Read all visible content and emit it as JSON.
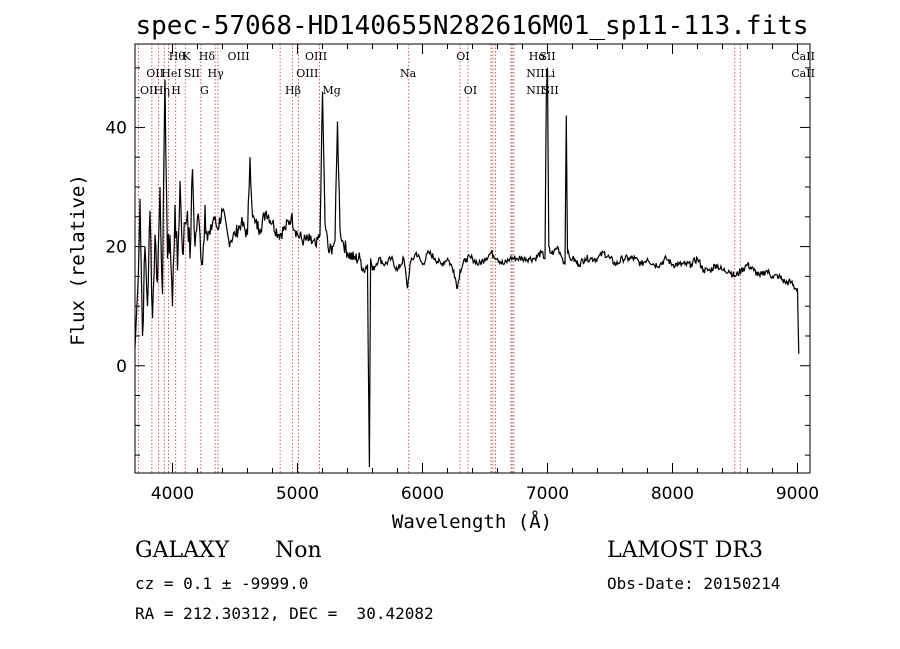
{
  "chart_data": {
    "type": "line",
    "title": "spec-57068-HD140655N282616M01_sp11-113.fits",
    "xlabel": "Wavelength (Å)",
    "ylabel": "Flux (relative)",
    "xlim": [
      3700,
      9100
    ],
    "ylim": [
      -18,
      54
    ],
    "x_ticks": [
      4000,
      5000,
      6000,
      7000,
      8000,
      9000
    ],
    "y_ticks": [
      0,
      20,
      40
    ],
    "grid": false,
    "series": [
      {
        "name": "flux",
        "x": [
          3700,
          3720,
          3740,
          3760,
          3780,
          3800,
          3820,
          3840,
          3860,
          3880,
          3900,
          3920,
          3940,
          3960,
          3980,
          4000,
          4020,
          4040,
          4060,
          4080,
          4100,
          4120,
          4140,
          4160,
          4180,
          4200,
          4220,
          4240,
          4260,
          4280,
          4300,
          4330,
          4360,
          4400,
          4450,
          4500,
          4550,
          4600,
          4620,
          4640,
          4660,
          4700,
          4750,
          4800,
          4850,
          4900,
          4950,
          5000,
          5050,
          5100,
          5150,
          5180,
          5200,
          5220,
          5250,
          5280,
          5300,
          5320,
          5340,
          5360,
          5400,
          5450,
          5500,
          5530,
          5560,
          5575,
          5585,
          5600,
          5650,
          5700,
          5750,
          5800,
          5850,
          5880,
          5900,
          5950,
          6000,
          6050,
          6100,
          6150,
          6200,
          6250,
          6280,
          6300,
          6350,
          6400,
          6450,
          6500,
          6550,
          6600,
          6650,
          6700,
          6750,
          6800,
          6850,
          6900,
          6950,
          6980,
          6990,
          7000,
          7010,
          7020,
          7050,
          7080,
          7100,
          7120,
          7140,
          7150,
          7160,
          7180,
          7200,
          7250,
          7300,
          7350,
          7400,
          7450,
          7500,
          7550,
          7600,
          7650,
          7700,
          7750,
          7800,
          7850,
          7900,
          7950,
          8000,
          8050,
          8100,
          8150,
          8200,
          8250,
          8300,
          8350,
          8400,
          8450,
          8500,
          8550,
          8600,
          8650,
          8700,
          8750,
          8800,
          8850,
          8900,
          8950,
          8980,
          9000,
          9010
        ],
        "values": [
          3,
          12,
          28,
          5,
          20,
          10,
          26,
          8,
          22,
          14,
          30,
          12,
          48,
          18,
          22,
          10,
          27,
          16,
          31,
          19,
          24,
          26,
          18,
          33,
          20,
          25,
          22,
          17,
          27,
          21,
          22,
          25,
          23,
          26,
          21,
          22,
          24,
          22,
          35,
          25,
          24,
          23,
          26,
          24,
          22,
          23,
          25,
          22,
          21,
          21,
          20,
          22,
          46,
          24,
          19,
          20,
          21,
          41,
          23,
          21,
          19,
          18,
          18,
          16,
          17,
          -17,
          18,
          16,
          18,
          17,
          18,
          16,
          18,
          13,
          17,
          19,
          17,
          19,
          18,
          17,
          18,
          16,
          13,
          16,
          18,
          18,
          17,
          18,
          19,
          18,
          17,
          18,
          18,
          18,
          18,
          18,
          19,
          18,
          45,
          50,
          20,
          19,
          19,
          20,
          19,
          18,
          17,
          42,
          19,
          18,
          18,
          17,
          18,
          18,
          18,
          19,
          18,
          17,
          18,
          18,
          18,
          17,
          18,
          17,
          17,
          18,
          17,
          17,
          17,
          17,
          18,
          16,
          16,
          17,
          16,
          16,
          15,
          16,
          17,
          16,
          15,
          16,
          15,
          15,
          14,
          14,
          13,
          13,
          2
        ]
      }
    ],
    "lines_top": [
      {
        "label": "Hθ",
        "x": 3970
      },
      {
        "label": "K",
        "x": 4080
      },
      {
        "label": "Hδ",
        "x": 4210
      },
      {
        "label": "OIII",
        "x": 4440
      },
      {
        "label": "OIII",
        "x": 5060
      },
      {
        "label": "OI",
        "x": 6270
      },
      {
        "label": "Hα",
        "x": 6850
      },
      {
        "label": "SII",
        "x": 6935
      },
      {
        "label": "CaII",
        "x": 8950
      }
    ],
    "lines_mid": [
      {
        "label": "OII",
        "x": 3790
      },
      {
        "label": "HeI",
        "x": 3910
      },
      {
        "label": "SII",
        "x": 4090
      },
      {
        "label": "Hγ",
        "x": 4280
      },
      {
        "label": "OIII",
        "x": 4990
      },
      {
        "label": "Na",
        "x": 5820
      },
      {
        "label": "NII",
        "x": 6830
      },
      {
        "label": "Li",
        "x": 6975
      },
      {
        "label": "CaII",
        "x": 8950
      }
    ],
    "lines_bot": [
      {
        "label": "OII",
        "x": 3740
      },
      {
        "label": "Hη",
        "x": 3850
      },
      {
        "label": "H",
        "x": 3990
      },
      {
        "label": "G",
        "x": 4220
      },
      {
        "label": "Hβ",
        "x": 4900
      },
      {
        "label": "Mg",
        "x": 5200
      },
      {
        "label": "OI",
        "x": 6330
      },
      {
        "label": "NII",
        "x": 6830
      },
      {
        "label": "SII",
        "x": 6960
      }
    ],
    "marker_lines": [
      3727,
      3835,
      3889,
      3934,
      3968,
      4026,
      4102,
      4227,
      4341,
      4364,
      4861,
      4959,
      5007,
      5175,
      5890,
      6300,
      6364,
      6548,
      6563,
      6583,
      6708,
      6717,
      6731,
      8498,
      8542
    ]
  },
  "info": {
    "class": "GALAXY",
    "subclass": "Non",
    "cz": "cz = 0.1 ± -9999.0",
    "radec": "RA = 212.30312, DEC =  30.42082",
    "survey": "LAMOST DR3",
    "obsdate": "Obs-Date: 20150214"
  }
}
